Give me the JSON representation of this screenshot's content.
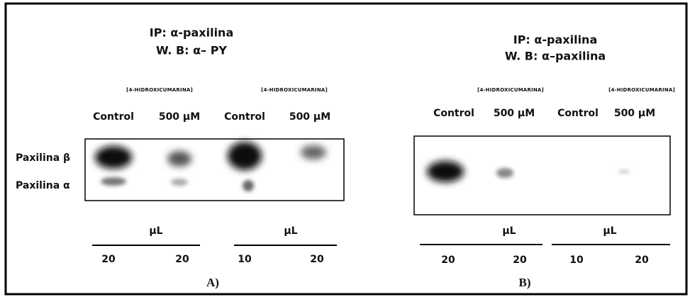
{
  "panels": [
    {
      "title": [
        "IP: α-paxilina",
        "W. B: α– PY"
      ],
      "treatments": [
        "[4-HIDROXICUMARINA]",
        "[4-HIDROXICUMARINA]"
      ],
      "columns": [
        "Control",
        "500 µM",
        "Control",
        "500 µM"
      ],
      "rows": [
        "Paxilina β",
        "Paxilina α"
      ],
      "unit": [
        "µL",
        "µL"
      ],
      "volumes": [
        20,
        20,
        10,
        20
      ],
      "label": "A)"
    },
    {
      "title": [
        "IP: α-paxilina",
        "W. B: α–paxilina"
      ],
      "treatments": [
        "[4-HIDROXICUMARINA]",
        "[4-HIDROXICUMARINA]"
      ],
      "columns": [
        "Control",
        "500 µM",
        "Control",
        "500 µM"
      ],
      "unit": [
        "µL",
        "µL"
      ],
      "volumes": [
        20,
        20,
        10,
        20
      ],
      "label": "B)"
    }
  ]
}
